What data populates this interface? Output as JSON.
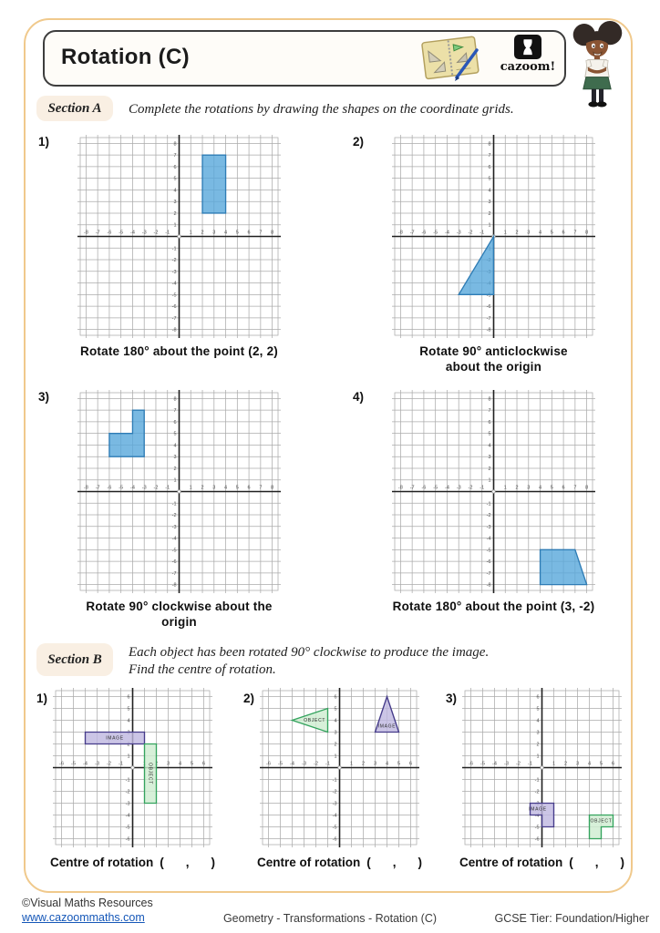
{
  "header": {
    "title": "Rotation (C)",
    "logo_text": "cazoom!",
    "icons": [
      "notebook-icon",
      "cazoom-logo",
      "student-character"
    ]
  },
  "section_a": {
    "label": "Section A",
    "instruction": "Complete the rotations by drawing the shapes on the coordinate grids.",
    "grid_range": 8,
    "problems": [
      {
        "number": "1)",
        "caption": [
          "Rotate 180° about the point (2, 2)"
        ],
        "shapes": [
          {
            "color": "blue",
            "points": [
              [
                2,
                2
              ],
              [
                4,
                2
              ],
              [
                4,
                7
              ],
              [
                2,
                7
              ]
            ]
          }
        ]
      },
      {
        "number": "2)",
        "caption": [
          "Rotate 90° anticlockwise",
          "about the origin"
        ],
        "shapes": [
          {
            "color": "blue",
            "points": [
              [
                0,
                0
              ],
              [
                0,
                -5
              ],
              [
                -3,
                -5
              ]
            ]
          }
        ]
      },
      {
        "number": "3)",
        "caption": [
          "Rotate 90° clockwise about the origin"
        ],
        "shapes": [
          {
            "color": "blue",
            "points": [
              [
                -4,
                7
              ],
              [
                -3,
                7
              ],
              [
                -3,
                3
              ],
              [
                -6,
                3
              ],
              [
                -6,
                5
              ],
              [
                -4,
                5
              ]
            ]
          }
        ]
      },
      {
        "number": "4)",
        "caption": [
          "Rotate 180° about the point (3, -2)"
        ],
        "shapes": [
          {
            "color": "blue",
            "points": [
              [
                4,
                -5
              ],
              [
                7,
                -5
              ],
              [
                8,
                -8
              ],
              [
                4,
                -8
              ]
            ]
          }
        ]
      }
    ]
  },
  "section_b": {
    "label": "Section B",
    "instruction": [
      "Each object has been rotated 90° clockwise to produce the image.",
      "Find the centre of rotation."
    ],
    "grid_range": 6,
    "answer_prefix": "Centre of rotation",
    "answer_open": "(",
    "answer_comma": ",",
    "answer_close": ")",
    "problems": [
      {
        "number": "1)",
        "shapes": [
          {
            "color": "purple",
            "points": [
              [
                -4,
                2
              ],
              [
                1,
                2
              ],
              [
                1,
                3
              ],
              [
                -4,
                3
              ]
            ],
            "label": "IMAGE",
            "label_at": [
              -1.5,
              2.5
            ]
          },
          {
            "color": "green",
            "points": [
              [
                1,
                -3
              ],
              [
                2,
                -3
              ],
              [
                2,
                2
              ],
              [
                1,
                2
              ]
            ],
            "label": "OBJECT",
            "label_at": [
              1.5,
              -0.5
            ],
            "label_rotate": 90
          }
        ]
      },
      {
        "number": "2)",
        "shapes": [
          {
            "color": "green",
            "points": [
              [
                -1,
                3
              ],
              [
                -1,
                5
              ],
              [
                -4,
                4
              ]
            ],
            "label": "OBJECT",
            "label_at": [
              -2.1,
              4
            ]
          },
          {
            "color": "purple",
            "points": [
              [
                4,
                6
              ],
              [
                5,
                3
              ],
              [
                3,
                3
              ]
            ],
            "label": "IMAGE",
            "label_at": [
              4,
              3.5
            ]
          }
        ]
      },
      {
        "number": "3)",
        "shapes": [
          {
            "color": "purple",
            "points": [
              [
                -1,
                -3
              ],
              [
                1,
                -3
              ],
              [
                1,
                -5
              ],
              [
                0,
                -5
              ],
              [
                0,
                -4
              ],
              [
                -1,
                -4
              ]
            ],
            "label": "IMAGE",
            "label_at": [
              -0.35,
              -3.5
            ]
          },
          {
            "color": "green",
            "points": [
              [
                4,
                -4
              ],
              [
                6,
                -4
              ],
              [
                6,
                -5
              ],
              [
                5,
                -5
              ],
              [
                5,
                -6
              ],
              [
                4,
                -6
              ]
            ],
            "label": "OBJECT",
            "label_at": [
              5,
              -4.5
            ]
          }
        ]
      }
    ]
  },
  "footer": {
    "copyright": "©Visual Maths Resources",
    "url": "www.cazoommaths.com",
    "center": "Geometry - Transformations - Rotation (C)",
    "right": "GCSE Tier: Foundation/Higher"
  },
  "colors": {
    "frame_border": "#f0c98c",
    "grid_line": "#ababab",
    "axis": "#202020",
    "tick": "#4a4a4a",
    "blue_fill": "#58a7db",
    "blue_stroke": "#2e7cb5",
    "green_fill": "#cdeccf",
    "green_stroke": "#33a35d",
    "purple_fill": "#beb6e0",
    "purple_stroke": "#453b8a",
    "link": "#1557b8"
  }
}
